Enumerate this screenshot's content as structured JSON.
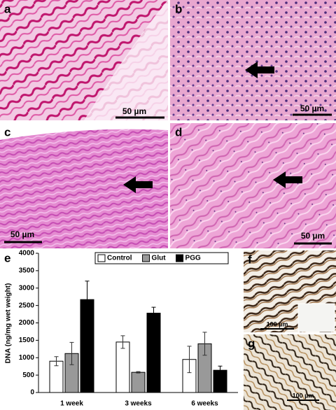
{
  "panels": [
    {
      "label": "a",
      "scale_bar": "50 µm"
    },
    {
      "label": "b",
      "scale_bar": "50 µm"
    },
    {
      "label": "c",
      "scale_bar": "50 µm"
    },
    {
      "label": "d",
      "scale_bar": "50 µm"
    },
    {
      "label": "f",
      "scale_bar": "100 µm"
    },
    {
      "label": "g",
      "scale_bar": "100 µm"
    }
  ],
  "chart_data": {
    "type": "bar",
    "panel_label": "e",
    "y_label": "DNA (ng/mg wet weight)",
    "categories": [
      "1 week",
      "3 weeks",
      "6 weeks"
    ],
    "series": [
      {
        "name": "Control",
        "color": "#ffffff",
        "values": [
          900,
          1450,
          950
        ],
        "errors": [
          130,
          180,
          380
        ]
      },
      {
        "name": "Glut",
        "color": "#999999",
        "values": [
          1120,
          580,
          1400
        ],
        "errors": [
          320,
          20,
          330
        ]
      },
      {
        "name": "PGG",
        "color": "#000000",
        "values": [
          2670,
          2280,
          640
        ],
        "errors": [
          530,
          170,
          120
        ]
      }
    ],
    "ylim": [
      0,
      4000
    ],
    "yticks": [
      0,
      500,
      1000,
      1500,
      2000,
      2500,
      3000,
      3500,
      4000
    ],
    "legend": "top"
  }
}
